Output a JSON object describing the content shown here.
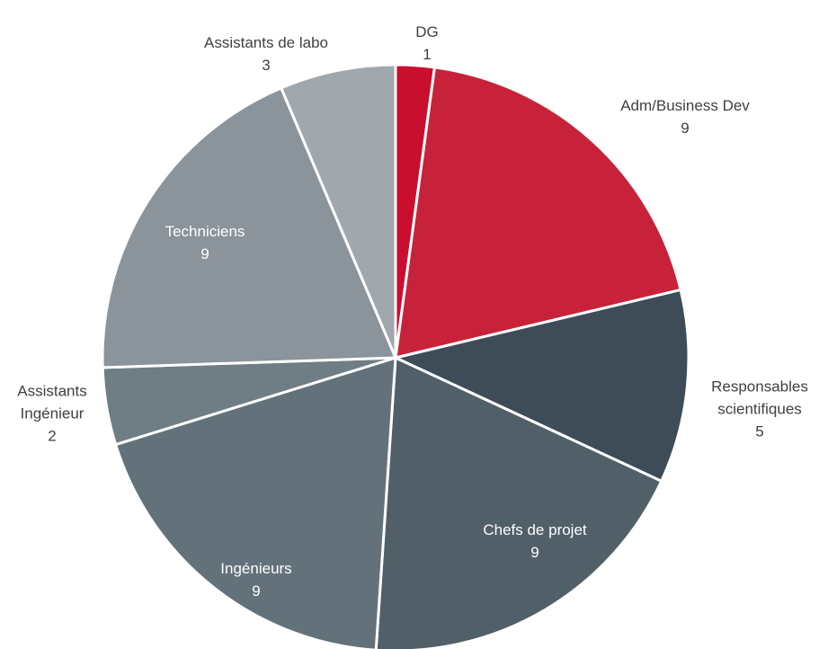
{
  "chart_data": {
    "type": "pie",
    "categories": [
      "DG",
      "Adm/Business Dev",
      "Responsables scientifiques",
      "Chefs de projet",
      "Ingénieurs",
      "Assistants Ingénieur",
      "Techniciens",
      "Assistants de labo"
    ],
    "values": [
      1,
      9,
      5,
      9,
      9,
      2,
      9,
      3
    ],
    "colors": [
      "#c8102e",
      "#c8223a",
      "#3d4c57",
      "#515f69",
      "#63727a",
      "#6f7d85",
      "#8a949a",
      "#a1a8ad"
    ]
  }
}
